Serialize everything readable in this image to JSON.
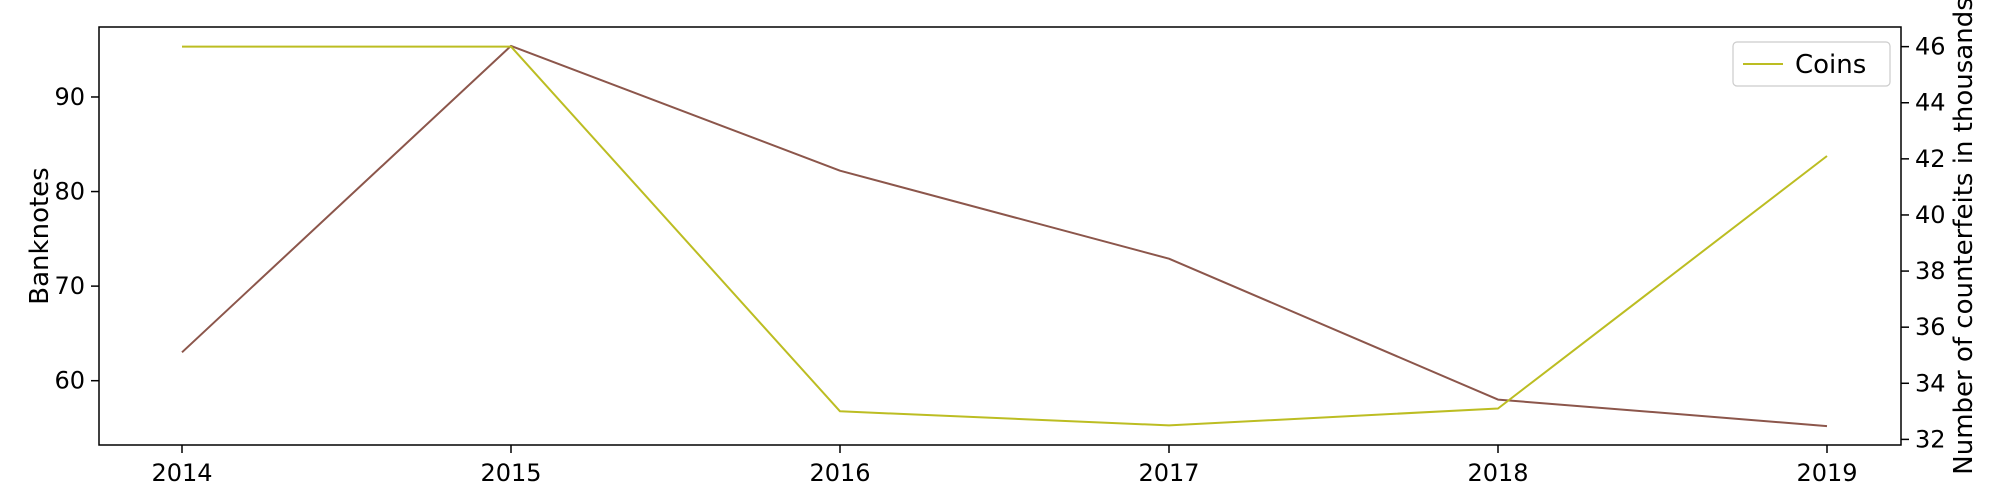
{
  "chart_data": {
    "type": "line",
    "title": "",
    "xlabel": "",
    "x": [
      "2014",
      "2015",
      "2016",
      "2017",
      "2018",
      "2019"
    ],
    "y_left": {
      "label": "Banknotes",
      "ticks": [
        60,
        70,
        80,
        90
      ],
      "ylim": [
        53.2,
        97.4
      ]
    },
    "y_right": {
      "label": "Number of counterfeits in thousands",
      "ticks": [
        32,
        34,
        36,
        38,
        40,
        42,
        44,
        46
      ],
      "ylim": [
        31.8,
        46.7
      ]
    },
    "series": [
      {
        "name": "",
        "axis": "left",
        "color": "#8c564b",
        "values": [
          63.0,
          95.4,
          82.2,
          72.9,
          58.0,
          55.2
        ]
      },
      {
        "name": "Coins",
        "axis": "right",
        "color": "#bcbd22",
        "values": [
          46.0,
          46.0,
          33.0,
          32.5,
          33.1,
          42.1
        ]
      }
    ],
    "legend": {
      "position": "top-right",
      "entries": [
        "Coins"
      ]
    },
    "grid": false
  }
}
